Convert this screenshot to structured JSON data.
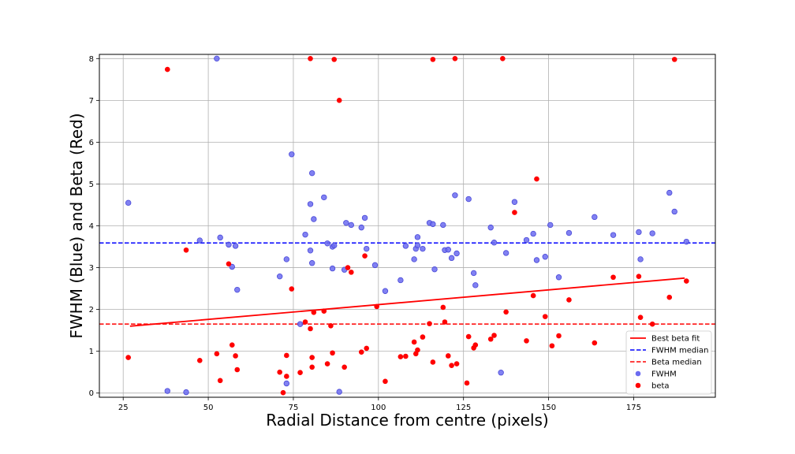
{
  "chart_data": {
    "type": "scatter",
    "title": "",
    "xlabel": "Radial Distance from centre (pixels)",
    "ylabel": "FWHM (Blue) and Beta (Red)",
    "xlim": [
      18,
      199
    ],
    "ylim": [
      -0.1,
      8.1
    ],
    "xticks": [
      25,
      50,
      75,
      100,
      125,
      150,
      175
    ],
    "yticks": [
      0,
      1,
      2,
      3,
      4,
      5,
      6,
      7,
      8
    ],
    "grid": true,
    "legend_position": "lower-right",
    "colors": {
      "fwhm": "#6b6bf0",
      "fwhm_edge": "#4a4ad8",
      "beta": "#ff0000",
      "fwhm_median": "#0000ff",
      "beta_median": "#ff0000",
      "fit": "#ff0000"
    },
    "series": [
      {
        "name": "FWHM",
        "kind": "scatter",
        "color": "#6b6bf0",
        "points": [
          [
            26.5,
            4.55
          ],
          [
            38,
            0.05
          ],
          [
            43.5,
            0.02
          ],
          [
            47.5,
            3.65
          ],
          [
            52.5,
            8.0
          ],
          [
            53.5,
            3.72
          ],
          [
            56,
            3.55
          ],
          [
            57,
            3.02
          ],
          [
            58,
            3.52
          ],
          [
            58.5,
            2.47
          ],
          [
            71,
            2.79
          ],
          [
            73,
            0.23
          ],
          [
            73,
            3.2
          ],
          [
            74.5,
            5.71
          ],
          [
            77,
            1.65
          ],
          [
            78.5,
            3.79
          ],
          [
            80,
            4.52
          ],
          [
            80,
            3.41
          ],
          [
            80.5,
            3.11
          ],
          [
            80.5,
            5.26
          ],
          [
            81,
            4.16
          ],
          [
            84,
            4.68
          ],
          [
            85,
            3.58
          ],
          [
            86.5,
            3.5
          ],
          [
            86.5,
            2.98
          ],
          [
            87,
            3.53
          ],
          [
            88.5,
            0.03
          ],
          [
            90,
            2.95
          ],
          [
            90.5,
            4.07
          ],
          [
            92,
            4.02
          ],
          [
            95,
            3.96
          ],
          [
            96,
            4.19
          ],
          [
            96.5,
            3.45
          ],
          [
            99,
            3.06
          ],
          [
            102,
            2.44
          ],
          [
            106.5,
            2.7
          ],
          [
            108,
            3.52
          ],
          [
            110.5,
            3.2
          ],
          [
            111,
            3.45
          ],
          [
            111.5,
            3.73
          ],
          [
            111.5,
            3.53
          ],
          [
            113,
            3.45
          ],
          [
            115,
            4.07
          ],
          [
            116,
            4.04
          ],
          [
            116.5,
            2.96
          ],
          [
            119,
            4.02
          ],
          [
            119.5,
            3.42
          ],
          [
            120.5,
            3.43
          ],
          [
            121.5,
            3.23
          ],
          [
            122.5,
            4.73
          ],
          [
            123,
            3.34
          ],
          [
            126.5,
            4.64
          ],
          [
            128,
            2.87
          ],
          [
            128.5,
            2.58
          ],
          [
            133,
            3.96
          ],
          [
            134,
            3.6
          ],
          [
            136,
            0.49
          ],
          [
            137.5,
            3.35
          ],
          [
            140,
            4.57
          ],
          [
            143.5,
            3.66
          ],
          [
            145.5,
            3.81
          ],
          [
            146.5,
            3.18
          ],
          [
            149,
            3.26
          ],
          [
            150.5,
            4.02
          ],
          [
            153,
            2.77
          ],
          [
            156,
            3.83
          ],
          [
            163.5,
            4.21
          ],
          [
            169,
            3.78
          ],
          [
            176.5,
            3.85
          ],
          [
            177,
            3.2
          ],
          [
            180.5,
            3.82
          ],
          [
            185.5,
            4.79
          ],
          [
            187,
            4.34
          ],
          [
            190.5,
            3.62
          ]
        ]
      },
      {
        "name": "beta",
        "kind": "scatter",
        "color": "#ff0000",
        "points": [
          [
            26.5,
            0.85
          ],
          [
            38,
            7.74
          ],
          [
            43.5,
            3.42
          ],
          [
            47.5,
            0.78
          ],
          [
            52.5,
            0.94
          ],
          [
            53.5,
            0.3
          ],
          [
            56,
            3.09
          ],
          [
            57,
            1.15
          ],
          [
            58,
            0.89
          ],
          [
            58.5,
            0.56
          ],
          [
            71,
            0.5
          ],
          [
            72,
            0.01
          ],
          [
            73,
            0.4
          ],
          [
            73,
            0.9
          ],
          [
            74.5,
            2.49
          ],
          [
            77,
            0.49
          ],
          [
            78.5,
            1.7
          ],
          [
            80,
            8.0
          ],
          [
            80,
            1.54
          ],
          [
            80.5,
            0.85
          ],
          [
            80.5,
            0.62
          ],
          [
            81,
            1.93
          ],
          [
            84,
            1.96
          ],
          [
            85,
            0.7
          ],
          [
            86,
            1.61
          ],
          [
            86.5,
            0.96
          ],
          [
            87,
            7.98
          ],
          [
            88.5,
            7.0
          ],
          [
            90,
            0.62
          ],
          [
            91,
            3.0
          ],
          [
            92,
            2.89
          ],
          [
            95,
            0.98
          ],
          [
            96,
            3.28
          ],
          [
            96.5,
            1.07
          ],
          [
            99.5,
            2.07
          ],
          [
            102,
            0.28
          ],
          [
            106.5,
            0.87
          ],
          [
            108,
            0.88
          ],
          [
            110.5,
            1.22
          ],
          [
            111,
            0.94
          ],
          [
            111.5,
            1.03
          ],
          [
            113,
            1.34
          ],
          [
            115,
            1.66
          ],
          [
            116,
            0.74
          ],
          [
            116,
            7.98
          ],
          [
            119,
            2.05
          ],
          [
            119.5,
            1.7
          ],
          [
            120.5,
            0.89
          ],
          [
            121.5,
            0.66
          ],
          [
            122.5,
            8.0
          ],
          [
            123,
            0.7
          ],
          [
            126,
            0.24
          ],
          [
            126.5,
            1.35
          ],
          [
            128,
            1.08
          ],
          [
            128.5,
            1.15
          ],
          [
            133,
            1.29
          ],
          [
            134,
            1.38
          ],
          [
            136.5,
            8.0
          ],
          [
            137.5,
            1.94
          ],
          [
            140,
            4.32
          ],
          [
            143.5,
            1.25
          ],
          [
            145.5,
            2.33
          ],
          [
            146.5,
            5.12
          ],
          [
            149,
            1.83
          ],
          [
            151,
            1.13
          ],
          [
            153,
            1.37
          ],
          [
            156,
            2.23
          ],
          [
            163.5,
            1.2
          ],
          [
            169,
            2.77
          ],
          [
            176.5,
            2.79
          ],
          [
            177,
            1.81
          ],
          [
            180.5,
            1.65
          ],
          [
            185.5,
            2.29
          ],
          [
            187,
            7.98
          ],
          [
            190.5,
            2.68
          ]
        ]
      },
      {
        "name": "Best beta fit",
        "kind": "line",
        "color": "#ff0000",
        "x": [
          27,
          190
        ],
        "y": [
          1.6,
          2.75
        ]
      },
      {
        "name": "FWHM median",
        "kind": "hline",
        "color": "#0000ff",
        "y": 3.59
      },
      {
        "name": "Beta median",
        "kind": "hline",
        "color": "#ff0000",
        "y": 1.65
      }
    ],
    "legend": [
      "Best beta fit",
      "FWHM median",
      "Beta median",
      "FWHM",
      "beta"
    ]
  }
}
